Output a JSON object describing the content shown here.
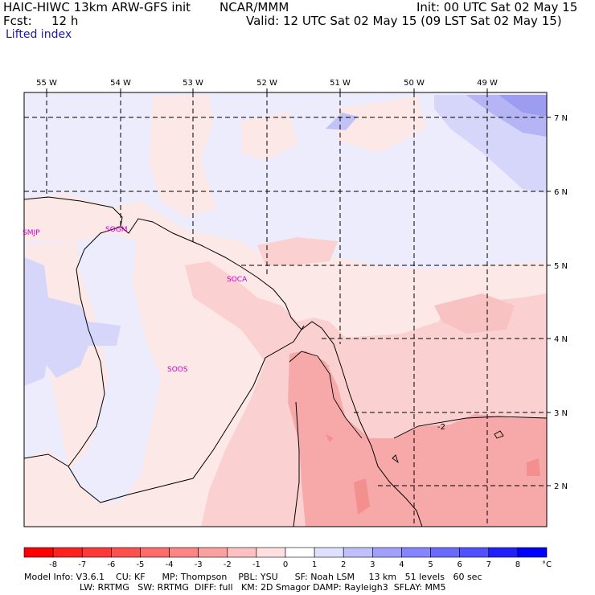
{
  "header": {
    "model_title": "HAIC-HIWC 13km ARW-GFS init",
    "org": "NCAR/MMM",
    "fcst_label": "Fcst:",
    "fcst_value": "12 h",
    "field": "Lifted index",
    "init": "Init: 00 UTC Sat 02 May 15",
    "valid": "Valid: 12 UTC Sat 02 May 15 (09 LST Sat 02 May 15)"
  },
  "map": {
    "lon_labels": [
      "55 W",
      "54 W",
      "53 W",
      "52 W",
      "51 W",
      "50 W",
      "49 W"
    ],
    "lat_labels": [
      "7 N",
      "6 N",
      "5 N",
      "4 N",
      "3 N",
      "2 N"
    ],
    "stations": [
      "SMJP",
      "SOGM",
      "SOCA",
      "SOOS"
    ],
    "contour_label": "-2"
  },
  "colorbar": {
    "ticks": [
      "-8",
      "-7",
      "-6",
      "-5",
      "-4",
      "-3",
      "-2",
      "-1",
      "0",
      "1",
      "2",
      "3",
      "4",
      "5",
      "6",
      "7",
      "8"
    ],
    "unit": "°C",
    "colors": [
      "#ff0000",
      "#ff2020",
      "#ff3838",
      "#ff5050",
      "#ff6a6a",
      "#ff8585",
      "#ffa0a0",
      "#ffc0c0",
      "#ffdfdf",
      "#ffffff",
      "#dfdfff",
      "#c0c0ff",
      "#a0a0ff",
      "#8585ff",
      "#6a6aff",
      "#5050ff",
      "#2020ff",
      "#0000ff"
    ]
  },
  "model_info": {
    "line1": "Model Info: V3.6.1    CU: KF      MP: Thompson    PBL: YSU      SF: Noah LSM     13 km   51 levels   60 sec",
    "line2": "LW: RRTMG   SW: RRTMG  DIFF: full   KM: 2D Smagor DAMP: Rayleigh3  SFLAY: MM5"
  }
}
